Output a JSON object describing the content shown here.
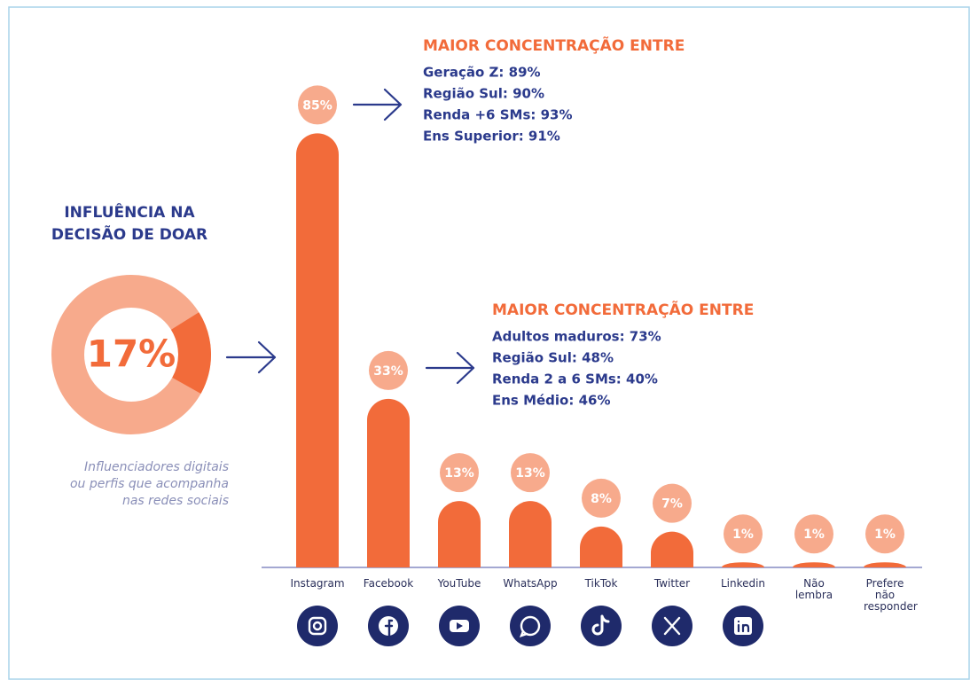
{
  "chart_data": {
    "type": "bar",
    "donut": {
      "title": "INFLUÊNCIA NA DECISÃO DE DOAR",
      "value": 17,
      "value_label": "17%",
      "caption": "Influenciadores digitais ou perfis que acompanha nas redes sociais",
      "color": "#f26b3a",
      "track_color": "#f7aa8c"
    },
    "categories": [
      "Instagram",
      "Facebook",
      "YouTube",
      "WhatsApp",
      "TikTok",
      "Twitter",
      "Linkedin",
      "Não lembra",
      "Prefere não responder"
    ],
    "values": [
      85,
      33,
      13,
      13,
      8,
      7,
      1,
      1,
      1
    ],
    "value_labels": [
      "85%",
      "33%",
      "13%",
      "13%",
      "8%",
      "7%",
      "1%",
      "1%",
      "1%"
    ],
    "color": "#f26b3a",
    "label_color": "#f7aa8c",
    "annotations": [
      {
        "title": "MAIOR CONCENTRAÇÃO ENTRE",
        "lines": [
          "Geração Z: 89%",
          "Região Sul: 90%",
          "Renda +6 SMs: 93%",
          "Ens Superior: 91%"
        ]
      },
      {
        "title": "MAIOR CONCENTRAÇÃO ENTRE",
        "lines": [
          "Adultos maduros: 73%",
          "Região Sul: 48%",
          "Renda 2 a 6 SMs: 40%",
          "Ens Médio: 46%"
        ]
      }
    ]
  }
}
